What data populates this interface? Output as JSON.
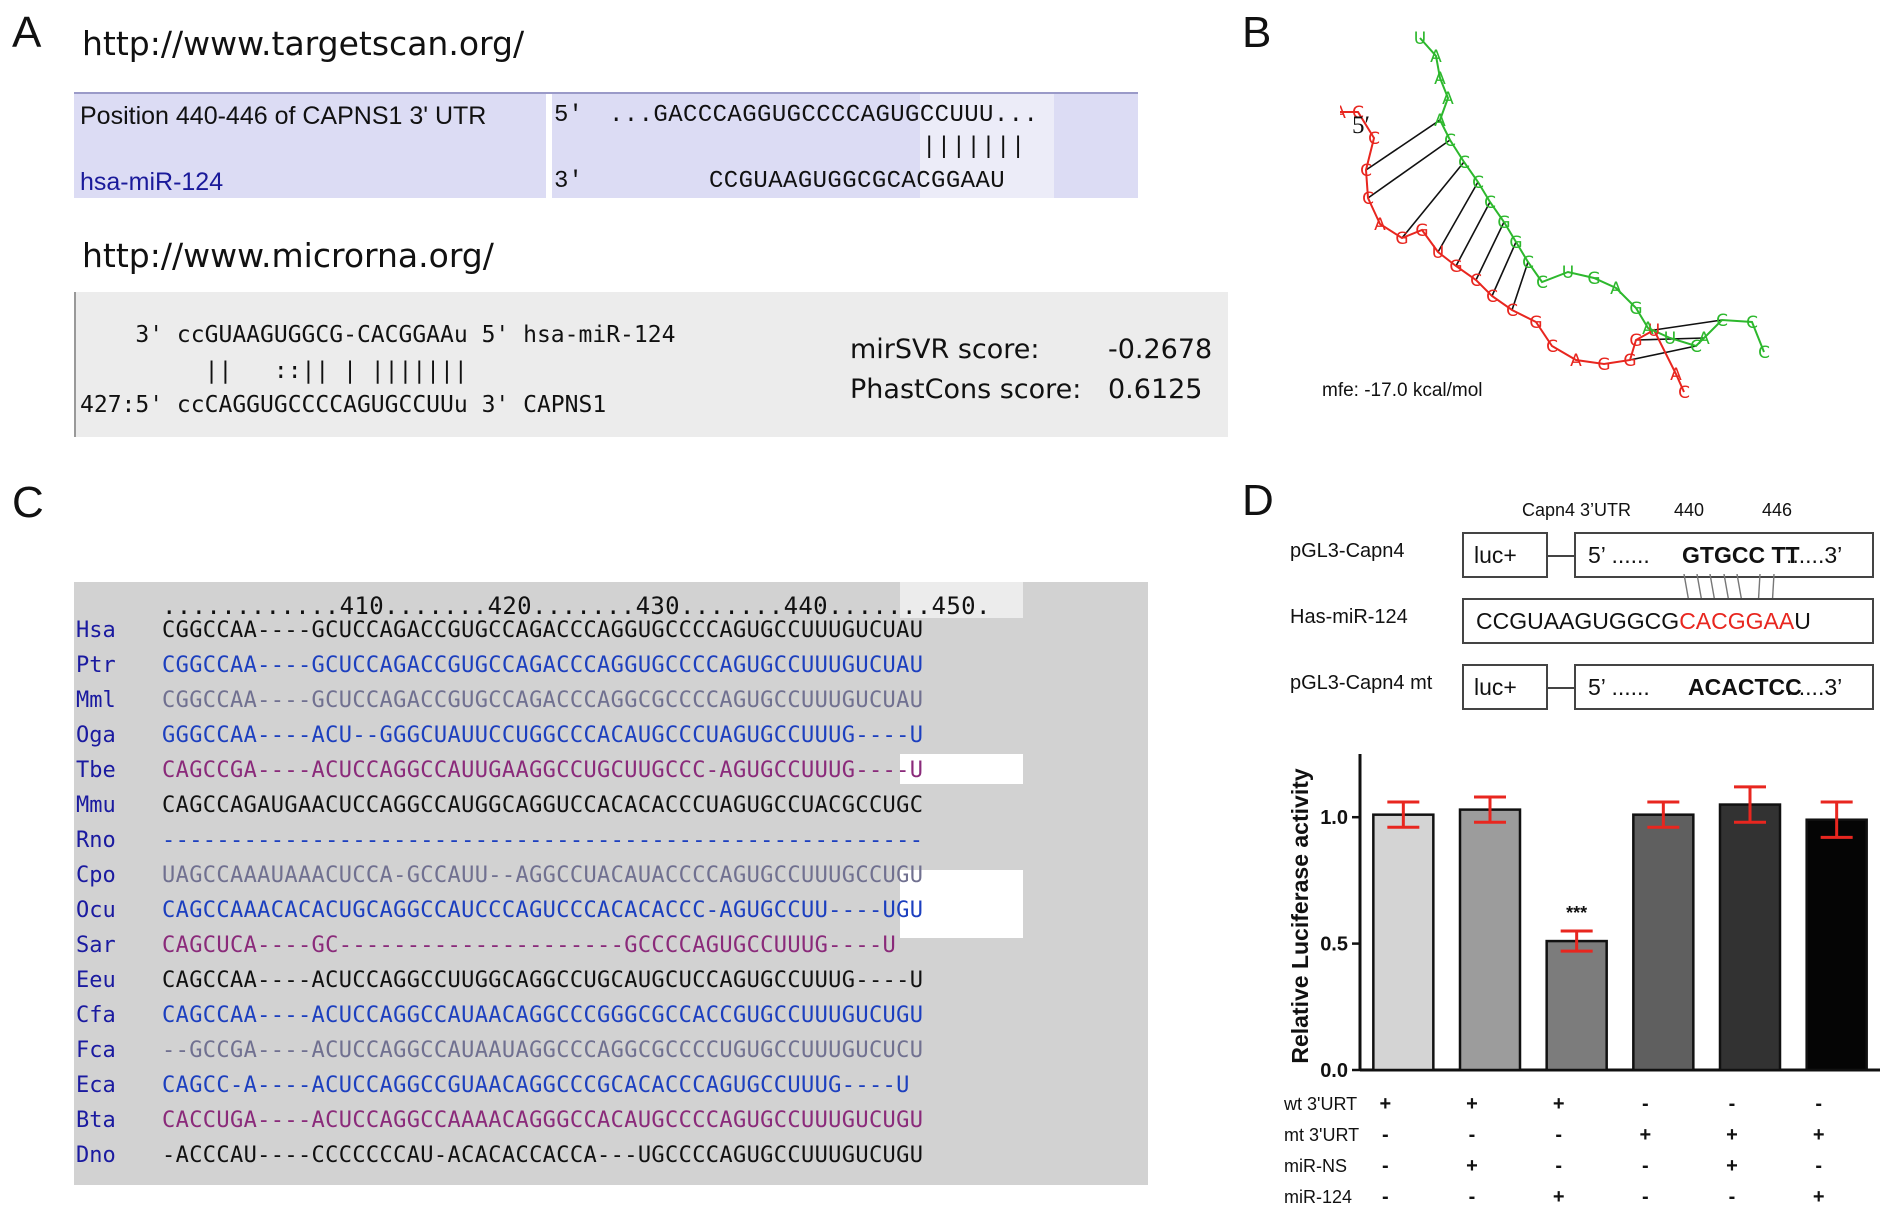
{
  "panel_a": {
    "letter": "A",
    "url1": "http://www.targetscan.org/",
    "ts_position": "Position 440-446 of CAPNS1 3' UTR",
    "ts_mirna": "hsa-miR-124",
    "ts_five": "5'",
    "ts_three": "3'",
    "ts_utr_seq": "...GACCCAGGUGCCCCAGUGCCUUU...",
    "ts_pairs": "|||||||",
    "ts_mir_seq": "CCGUAAGUGGCGCACGGAAU",
    "url2": "http://www.microrna.org/",
    "mr_line1": "    3' ccGUAAGUGGCG-CACGGAAu 5' hsa-miR-124",
    "mr_line2": "         ||   ::|| | |||||||",
    "mr_line3": "427:5' ccCAGGUGCCCCAGUGCCUUu 3' CAPNS1",
    "mirsvr_label": "mirSVR score:",
    "mirsvr_value": "-0.2678",
    "phast_label": "PhastCons score:",
    "phast_value": "0.6125"
  },
  "panel_b": {
    "letter": "B",
    "five_label": "5′",
    "mfe": "mfe: -17.0 kcal/mol",
    "colors": {
      "mirna": "#e8261f",
      "target": "#2db82d"
    }
  },
  "panel_c": {
    "letter": "C",
    "ruler": "............410.......420.......430.......440.......450.",
    "rows": [
      {
        "sp": "Hsa",
        "seq": "CGGCCAA----GCUCCAGACCGUGCCAGACCCAGGUGCCCCAGUGCCUUUGUCUAU",
        "color": "#111111"
      },
      {
        "sp": "Ptr",
        "seq": "CGGCCAA----GCUCCAGACCGUGCCAGACCCAGGUGCCCCAGUGCCUUUGUCUAU",
        "color": "#1c3fbf"
      },
      {
        "sp": "Mml",
        "seq": "CGGCCAA----GCUCCAGACCGUGCCAGACCCAGGCGCCCCAGUGCCUUUGUCUAU",
        "color": "#707090"
      },
      {
        "sp": "Oga",
        "seq": "GGGCCAA----ACU--GGGCUAUUCCUGGCCCACAUGCCCUAGUGCCUUUG----U",
        "color": "#1c3fbf"
      },
      {
        "sp": "Tbe",
        "seq": "CAGCCGA----ACUCCAGGCCAUUGAAGGCCUGCUUGCCC-AGUGCCUUUG----U",
        "color": "#8a2a7a"
      },
      {
        "sp": "Mmu",
        "seq": "CAGCCAGAUGAACUCCAGGCCAUGGCAGGUCCACACACCCUAGUGCCUACGCCUGC",
        "color": "#111111"
      },
      {
        "sp": "Rno",
        "seq": "--------------------------------------------------------",
        "color": "#1c3fbf"
      },
      {
        "sp": "Cpo",
        "seq": "UAGCCAAAUAAACUCCA-GCCAUU--AGGCCUACAUACCCCAGUGCCUUUGCCUGU",
        "color": "#707090"
      },
      {
        "sp": "Ocu",
        "seq": "CAGCCAAACACACUGCAGGCCAUCCCAGUCCCACACACCC-AGUGCCUU----UGU",
        "color": "#1c3fbf"
      },
      {
        "sp": "Sar",
        "seq": "CAGCUCA----GC---------------------GCCCCAGUGCCUUUG----U",
        "color": "#8a2a7a"
      },
      {
        "sp": "Eeu",
        "seq": "CAGCCAA----ACUCCAGGCCUUGGCAGGCCUGCAUGCUCCAGUGCCUUUG----U",
        "color": "#111111"
      },
      {
        "sp": "Cfa",
        "seq": "CAGCCAA----ACUCCAGGCCAUAACAGGCCCGGGCGCCACCGUGCCUUUGUCUGU",
        "color": "#1c3fbf"
      },
      {
        "sp": "Fca",
        "seq": "--GCCGA----ACUCCAGGCCAUAAUAGGCCCAGGCGCCCCUGUGCCUUUGUCUCU",
        "color": "#707090"
      },
      {
        "sp": "Eca",
        "seq": "CAGCC-A----ACUCCAGGCCGUAACAGGCCCGCACACCCAGUGCCUUUG----U",
        "color": "#1c3fbf"
      },
      {
        "sp": "Bta",
        "seq": "CACCUGA----ACUCCAGGCCAAAACAGGGCCACAUGCCCCAGUGCCUUUGUCUGU",
        "color": "#8a2a7a"
      },
      {
        "sp": "Dno",
        "seq": "-ACCCAU----CCCCCCCAU-ACACACCACCA---UGCCCCAGUGCCUUUGUCUGU",
        "color": "#111111"
      }
    ]
  },
  "panel_d": {
    "letter": "D",
    "hdr_utr": "Capn4 3’UTR",
    "hdr_440": "440",
    "hdr_446": "446",
    "row1_label": "pGL3-Capn4",
    "row2_label": "Has-miR-124",
    "row3_label": "pGL3-Capn4 mt",
    "luc": "luc+",
    "five": "5’ ......",
    "three": "......3’",
    "wt_site": "GTGCC TT",
    "mir_black": "CCGUAAGUGGCG",
    "mir_red": "CACGGAA",
    "mir_end": "U",
    "mt_site": "ACACTCC",
    "mir_red_color": "#e8261f"
  },
  "chart_data": {
    "type": "bar",
    "ylabel": "Relative Luciferase activity",
    "ylim": [
      0,
      1.25
    ],
    "yticks": [
      "0.0",
      "0.5",
      "1.0"
    ],
    "values": [
      1.01,
      1.03,
      0.51,
      1.01,
      1.05,
      0.99
    ],
    "errors": [
      0.05,
      0.05,
      0.04,
      0.05,
      0.07,
      0.07
    ],
    "bar_colors": [
      "#d4d4d4",
      "#9c9c9c",
      "#7c7c7c",
      "#5f5f5f",
      "#323232",
      "#050505"
    ],
    "error_color": "#e8261f",
    "significance": [
      {
        "index": 2,
        "label": "***"
      }
    ],
    "conditions": [
      {
        "label": "wt 3'URT",
        "values": [
          "+",
          "+",
          "+",
          "-",
          "-",
          "-"
        ]
      },
      {
        "label": "mt 3'URT",
        "values": [
          "-",
          "-",
          "-",
          "+",
          "+",
          "+"
        ]
      },
      {
        "label": "miR-NS",
        "values": [
          "-",
          "+",
          "-",
          "-",
          "+",
          "-"
        ]
      },
      {
        "label": "miR-124",
        "values": [
          "-",
          "-",
          "+",
          "-",
          "-",
          "+"
        ]
      }
    ]
  }
}
